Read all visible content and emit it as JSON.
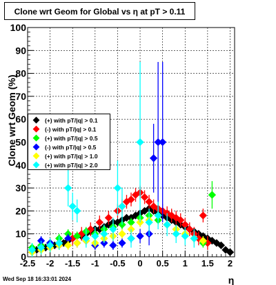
{
  "title_text": "Clone wrt Geom for Global vs   η at pT > 0.11",
  "timestamp": "Wed Sep 18 16:33:01 2024",
  "chart_data": {
    "type": "scatter",
    "title": "Clone wrt Geom for Global vs   η at pT > 0.11",
    "xlabel": "η",
    "ylabel": "Clone wrt Geom (%)",
    "xlim": [
      -2.5,
      2.1
    ],
    "ylim": [
      0,
      100
    ],
    "grid": true,
    "legend_position": "middle-left",
    "xticks": [
      "-2.5",
      "-2",
      "-1.5",
      "-1",
      "-0.5",
      "0",
      "0.5",
      "1",
      "1.5",
      "2"
    ],
    "yticks": [
      "0",
      "10",
      "20",
      "30",
      "40",
      "50",
      "60",
      "70",
      "80",
      "90",
      "100"
    ],
    "series": [
      {
        "name": "(+) with pT/|q| > 0.1",
        "color": "#000000",
        "x": [
          -2.4,
          -2.3,
          -2.2,
          -2.1,
          -2.0,
          -1.9,
          -1.8,
          -1.7,
          -1.6,
          -1.5,
          -1.4,
          -1.3,
          -1.2,
          -1.1,
          -1.0,
          -0.9,
          -0.8,
          -0.7,
          -0.6,
          -0.5,
          -0.4,
          -0.3,
          -0.2,
          -0.1,
          0.0,
          0.1,
          0.2,
          0.3,
          0.4,
          0.5,
          0.6,
          0.7,
          0.8,
          0.9,
          1.0,
          1.1,
          1.2,
          1.3,
          1.4,
          1.5,
          1.6,
          1.7,
          1.8,
          1.9,
          2.0
        ],
        "y": [
          3,
          3,
          4,
          4,
          5,
          5,
          6,
          6,
          7,
          8,
          9,
          9,
          10,
          11,
          12,
          12,
          13,
          14,
          15,
          15,
          16,
          17,
          17,
          18,
          19,
          20,
          21,
          20,
          19,
          18,
          17,
          16,
          15,
          14,
          13,
          12,
          11,
          10,
          9,
          8,
          7,
          6,
          5,
          3,
          2
        ],
        "err": [
          1,
          1,
          1,
          1,
          1,
          1,
          1,
          1,
          1,
          1,
          1,
          1,
          1,
          1,
          1,
          1,
          1,
          1,
          1,
          1,
          1,
          1,
          1,
          1,
          1,
          1,
          1,
          1,
          1,
          1,
          1,
          1,
          1,
          1,
          1,
          1,
          1,
          1,
          1,
          1,
          1,
          1,
          1,
          1,
          1
        ]
      },
      {
        "name": "(-) with pT/|q| > 0.1",
        "color": "#ff0000",
        "x": [
          -1.5,
          -1.3,
          -1.1,
          -0.9,
          -0.7,
          -0.5,
          -0.4,
          -0.3,
          -0.2,
          -0.1,
          0.0,
          0.1,
          0.2,
          0.3,
          0.4,
          0.5,
          0.6,
          0.7,
          0.8,
          0.9,
          1.0,
          1.1,
          1.2,
          1.3,
          1.4,
          1.5
        ],
        "y": [
          8,
          10,
          12,
          15,
          17,
          20,
          22,
          24,
          25,
          27,
          28,
          26,
          24,
          22,
          21,
          20,
          19,
          18,
          17,
          16,
          14,
          12,
          10,
          8,
          18,
          6
        ],
        "err": [
          3,
          3,
          3,
          3,
          3,
          3,
          3,
          3,
          3,
          3,
          3,
          3,
          3,
          3,
          3,
          3,
          3,
          3,
          3,
          3,
          3,
          3,
          3,
          3,
          3,
          3
        ]
      },
      {
        "name": "(+) with pT/|q| > 0.5",
        "color": "#00ff00",
        "x": [
          -2.4,
          -2.2,
          -2.0,
          -1.8,
          -1.6,
          -1.4,
          -1.2,
          -1.0,
          -0.8,
          -0.6,
          -0.4,
          -0.2,
          0.0,
          0.2,
          0.4,
          0.6,
          0.8,
          1.0,
          1.2,
          1.4,
          1.6
        ],
        "y": [
          4,
          5,
          6,
          8,
          10,
          9,
          11,
          10,
          12,
          13,
          14,
          15,
          17,
          18,
          16,
          14,
          12,
          10,
          8,
          6,
          27
        ],
        "err": [
          2,
          2,
          2,
          2,
          2,
          2,
          2,
          2,
          2,
          2,
          2,
          2,
          2,
          2,
          2,
          2,
          2,
          2,
          2,
          2,
          6
        ]
      },
      {
        "name": "(-) with pT/|q| > 0.5",
        "color": "#0000ff",
        "x": [
          -2.2,
          -2.0,
          -1.8,
          -1.6,
          -1.4,
          -1.2,
          -1.0,
          -0.8,
          -0.6,
          -0.4,
          -0.2,
          0.0,
          0.2,
          0.3,
          0.4,
          0.5
        ],
        "y": [
          7,
          6,
          5,
          8,
          6,
          7,
          5,
          6,
          5,
          6,
          8,
          9,
          10,
          43,
          50,
          50
        ],
        "err": [
          2,
          2,
          2,
          2,
          2,
          2,
          2,
          2,
          2,
          2,
          2,
          3,
          5,
          15,
          35,
          35
        ]
      },
      {
        "name": "(+) with pT/|q| > 1.0",
        "color": "#ffff00",
        "x": [
          -2.4,
          -2.2,
          -2.0,
          -1.8,
          -1.6,
          -1.4,
          -1.2,
          -1.0,
          -0.8,
          -0.6,
          -0.4,
          -0.2,
          0.0,
          0.2,
          0.4,
          0.6,
          0.8,
          1.0,
          1.2,
          1.4
        ],
        "y": [
          2,
          3,
          4,
          5,
          5,
          6,
          7,
          6,
          8,
          9,
          10,
          12,
          15,
          16,
          18,
          14,
          12,
          10,
          8,
          7
        ],
        "err": [
          2,
          2,
          2,
          2,
          2,
          2,
          2,
          2,
          2,
          2,
          2,
          2,
          2,
          2,
          2,
          2,
          2,
          2,
          2,
          2
        ]
      },
      {
        "name": "(+) with pT/|q| > 2.0",
        "color": "#00ffff",
        "x": [
          -2.4,
          -2.2,
          -2.0,
          -1.8,
          -1.6,
          -1.5,
          -1.4,
          -1.2,
          -1.0,
          -0.8,
          -0.6,
          -0.5,
          -0.4,
          -0.2,
          0.0,
          0.2,
          0.4,
          0.6,
          0.8,
          1.0,
          1.2
        ],
        "y": [
          3,
          4,
          5,
          6,
          30,
          22,
          20,
          8,
          9,
          10,
          12,
          30,
          22,
          8,
          50,
          15,
          18,
          14,
          10,
          9,
          8
        ],
        "err": [
          3,
          3,
          3,
          3,
          8,
          6,
          5,
          4,
          4,
          4,
          5,
          12,
          8,
          4,
          35,
          6,
          6,
          5,
          4,
          4,
          4
        ]
      }
    ]
  }
}
